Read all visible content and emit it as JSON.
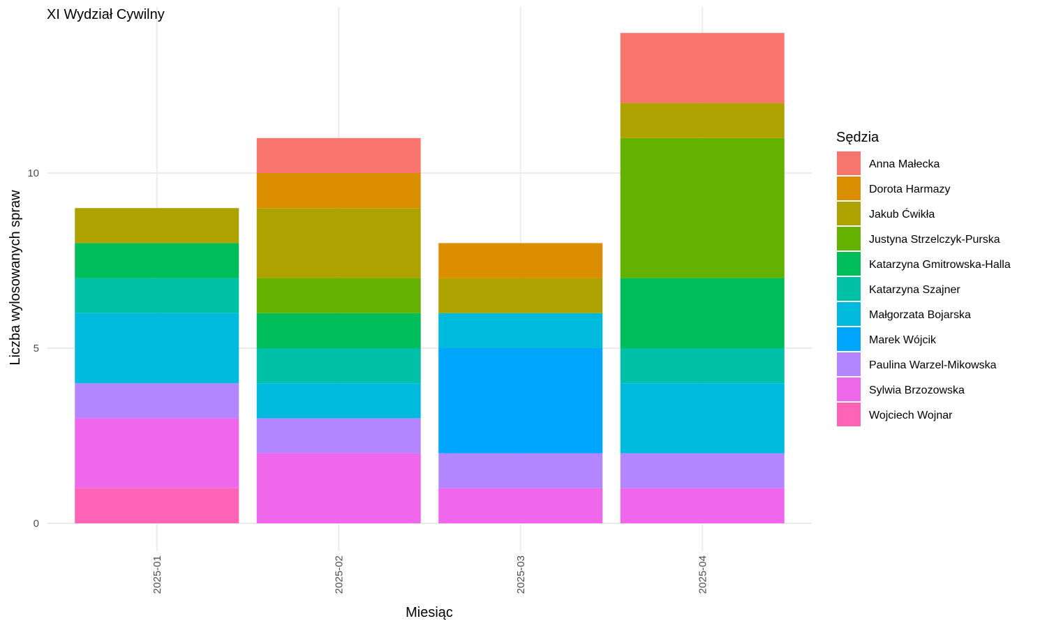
{
  "chart_data": {
    "type": "bar",
    "stacked": true,
    "title": "XI Wydział Cywilny",
    "xlabel": "Miesiąc",
    "ylabel": "Liczba wylosowanych spraw",
    "legend_title": "Sędzia",
    "legend_position": "right",
    "grid": true,
    "ylim": [
      0,
      14
    ],
    "y_ticks": [
      0,
      5,
      10
    ],
    "categories": [
      "2025-01",
      "2025-02",
      "2025-03",
      "2025-04"
    ],
    "series": [
      {
        "name": "Anna Małecka",
        "color": "#F8766D",
        "values": [
          0,
          1,
          0,
          2
        ]
      },
      {
        "name": "Dorota Harmazy",
        "color": "#DB8E00",
        "values": [
          0,
          1,
          1,
          0
        ]
      },
      {
        "name": "Jakub Ćwikła",
        "color": "#AEA200",
        "values": [
          1,
          2,
          1,
          1
        ]
      },
      {
        "name": "Justyna Strzelczyk-Purska",
        "color": "#64B200",
        "values": [
          0,
          1,
          0,
          4
        ]
      },
      {
        "name": "Katarzyna Gmitrowska-Halla",
        "color": "#00BD5C",
        "values": [
          1,
          1,
          0,
          2
        ]
      },
      {
        "name": "Katarzyna Szajner",
        "color": "#00C1A7",
        "values": [
          1,
          1,
          0,
          1
        ]
      },
      {
        "name": "Małgorzata Bojarska",
        "color": "#00BADE",
        "values": [
          2,
          1,
          1,
          2
        ]
      },
      {
        "name": "Marek Wójcik",
        "color": "#00A6FF",
        "values": [
          0,
          0,
          3,
          0
        ]
      },
      {
        "name": "Paulina Warzel-Mikowska",
        "color": "#B385FF",
        "values": [
          1,
          1,
          1,
          1
        ]
      },
      {
        "name": "Sylwia Brzozowska",
        "color": "#EF67EB",
        "values": [
          2,
          2,
          1,
          1
        ]
      },
      {
        "name": "Wojciech Wojnar",
        "color": "#FF63B6",
        "values": [
          1,
          0,
          0,
          0
        ]
      }
    ]
  }
}
